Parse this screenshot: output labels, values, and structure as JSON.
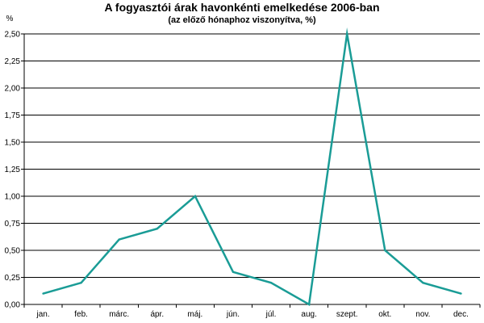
{
  "chart_data": {
    "type": "line",
    "title": "A fogyasztói árak havonkénti emelkedése 2006-ban",
    "subtitle": "(az előző hónaphoz viszonyítva, %)",
    "ylabel": "%",
    "xlabel": "",
    "categories": [
      "jan.",
      "feb.",
      "márc.",
      "ápr.",
      "máj.",
      "jún.",
      "júl.",
      "aug.",
      "szept.",
      "okt.",
      "nov.",
      "dec."
    ],
    "series": [
      {
        "values": [
          0.1,
          0.2,
          0.6,
          0.7,
          1.0,
          0.3,
          0.2,
          0.0,
          2.5,
          0.5,
          0.2,
          0.1
        ]
      }
    ],
    "ylim": [
      0,
      2.5
    ],
    "yticks": [
      0.0,
      0.25,
      0.5,
      0.75,
      1.0,
      1.25,
      1.5,
      1.75,
      2.0,
      2.25,
      2.5
    ],
    "ytick_labels": [
      "0,00",
      "0,25",
      "0,50",
      "0,75",
      "1,00",
      "1,25",
      "1,50",
      "1,75",
      "2,00",
      "2,25",
      "2,50"
    ],
    "grid": "horizontal",
    "legend": "none",
    "colors": {
      "line": "#1a9c96",
      "grid": "#000000",
      "axis": "#000000"
    }
  }
}
